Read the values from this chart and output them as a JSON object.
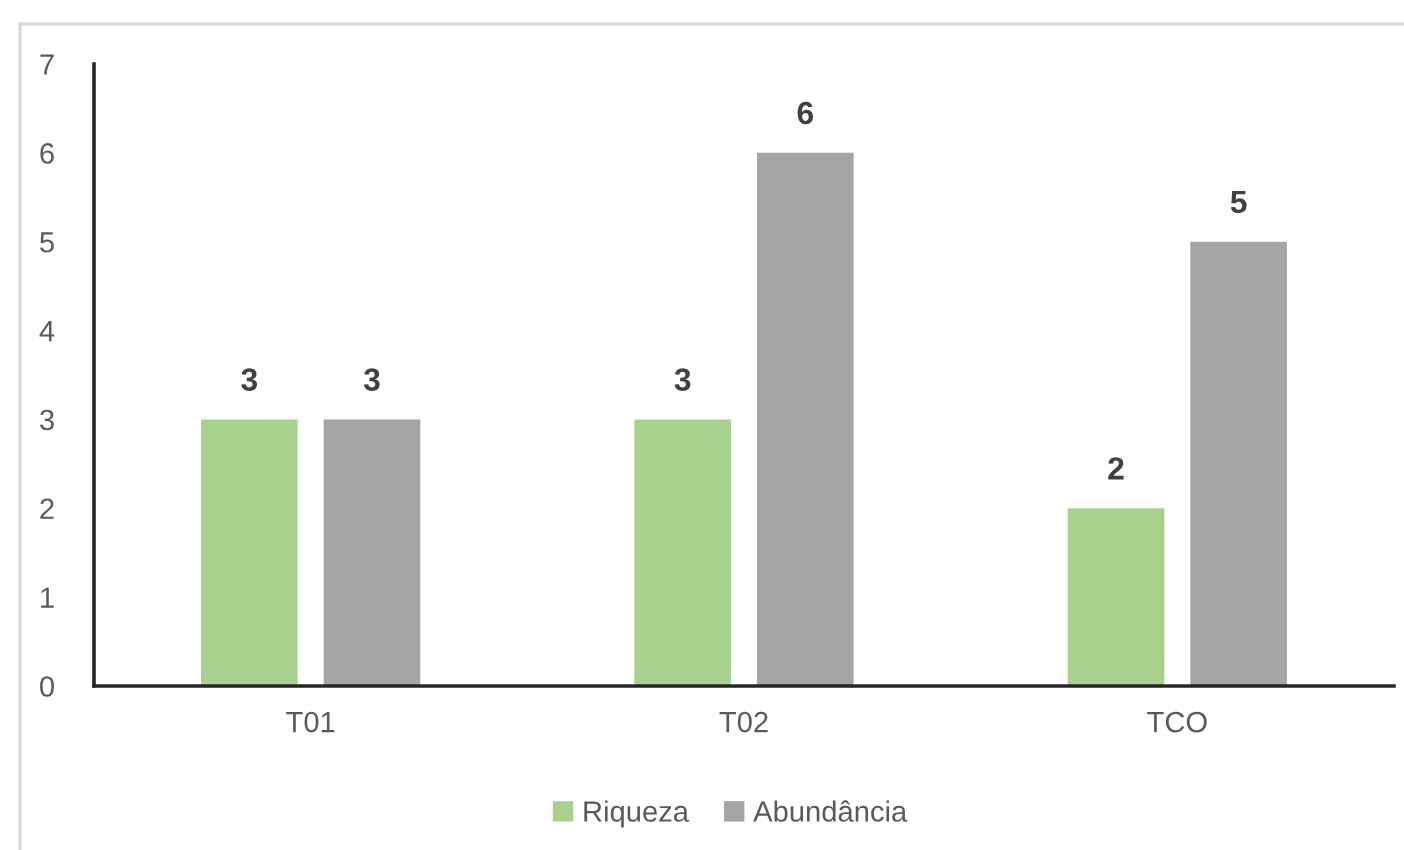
{
  "chart_data": {
    "type": "bar",
    "categories": [
      "T01",
      "T02",
      "TCO"
    ],
    "series": [
      {
        "name": "Riqueza",
        "color": "#a9d18e",
        "values": [
          3,
          3,
          2
        ]
      },
      {
        "name": "Abundância",
        "color": "#a5a5a5",
        "values": [
          3,
          6,
          5
        ]
      }
    ],
    "ylim": [
      0,
      7
    ],
    "yticks": [
      0,
      1,
      2,
      3,
      4,
      5,
      6,
      7
    ],
    "grid": false,
    "legend": "bottom",
    "data_labels": true
  }
}
